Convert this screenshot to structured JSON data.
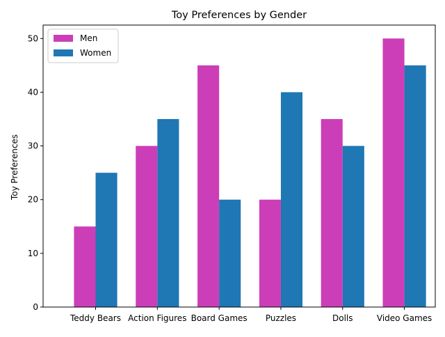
{
  "chart_data": {
    "type": "bar",
    "title": "Toy Preferences by Gender",
    "xlabel": "",
    "ylabel": "Toy Preferences",
    "categories": [
      "Teddy Bears",
      "Action Figures",
      "Board Games",
      "Puzzles",
      "Dolls",
      "Video Games"
    ],
    "series": [
      {
        "name": "Men",
        "color": "#cc3eb8",
        "values": [
          15,
          30,
          45,
          20,
          35,
          50
        ]
      },
      {
        "name": "Women",
        "color": "#1f77b4",
        "values": [
          25,
          35,
          20,
          40,
          30,
          45
        ]
      }
    ],
    "ylim": [
      0,
      52.5
    ],
    "yticks": [
      0,
      10,
      20,
      30,
      40,
      50
    ],
    "grid": false,
    "legend_position": "top-left"
  }
}
